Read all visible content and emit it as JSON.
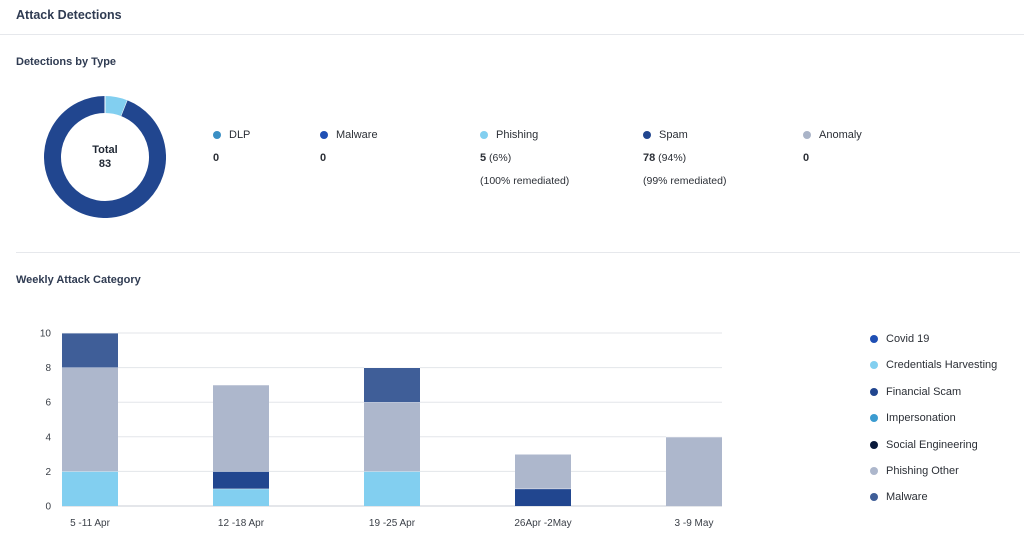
{
  "header": {
    "title": "Attack Detections"
  },
  "detections": {
    "section_title": "Detections by Type",
    "total_label": "Total",
    "total_value": "83",
    "types": [
      {
        "name": "DLP",
        "count": "0",
        "pct": "",
        "remediated": "",
        "color": "#3b8fc4"
      },
      {
        "name": "Malware",
        "count": "0",
        "pct": "",
        "remediated": "",
        "color": "#1f4fb4"
      },
      {
        "name": "Phishing",
        "count": "5",
        "pct": " (6%)",
        "remediated": "(100% remediated)",
        "color": "#82cff0"
      },
      {
        "name": "Spam",
        "count": "78",
        "pct": " (94%)",
        "remediated": "(99% remediated)",
        "color": "#21468f"
      },
      {
        "name": "Anomaly",
        "count": "0",
        "pct": "",
        "remediated": "",
        "color": "#aab4c8"
      }
    ]
  },
  "weekly": {
    "section_title": "Weekly Attack Category",
    "legend": [
      {
        "name": "Covid 19",
        "color": "#1f4fb4"
      },
      {
        "name": "Credentials Harvesting",
        "color": "#82cff0"
      },
      {
        "name": "Financial Scam",
        "color": "#21468f"
      },
      {
        "name": "Impersonation",
        "color": "#3b9bd0"
      },
      {
        "name": "Social Engineering",
        "color": "#0a1a3c"
      },
      {
        "name": "Phishing Other",
        "color": "#adb7cc"
      },
      {
        "name": "Malware",
        "color": "#3f5e98"
      }
    ]
  },
  "chart_data": [
    {
      "type": "pie",
      "title": "Detections by Type",
      "categories": [
        "DLP",
        "Malware",
        "Phishing",
        "Spam",
        "Anomaly"
      ],
      "values": [
        0,
        0,
        5,
        78,
        0
      ],
      "center_text": "Total 83"
    },
    {
      "type": "bar",
      "stacked": true,
      "title": "Weekly Attack Category",
      "categories": [
        "5 -11 Apr",
        "12 -18 Apr",
        "19 -25 Apr",
        "26Apr -2May",
        "3 -9 May"
      ],
      "series": [
        {
          "name": "Covid 19",
          "values": [
            0,
            0,
            0,
            0,
            0
          ],
          "color": "#1f4fb4"
        },
        {
          "name": "Credentials Harvesting",
          "values": [
            2,
            1,
            2,
            0,
            0
          ],
          "color": "#82cff0"
        },
        {
          "name": "Financial Scam",
          "values": [
            0,
            1,
            0,
            1,
            0
          ],
          "color": "#21468f"
        },
        {
          "name": "Impersonation",
          "values": [
            0,
            0,
            0,
            0,
            0
          ],
          "color": "#3b9bd0"
        },
        {
          "name": "Social Engineering",
          "values": [
            0,
            0,
            0,
            0,
            0
          ],
          "color": "#0a1a3c"
        },
        {
          "name": "Phishing Other",
          "values": [
            6,
            5,
            4,
            2,
            4
          ],
          "color": "#adb7cc"
        },
        {
          "name": "Malware",
          "values": [
            2,
            0,
            2,
            0,
            0
          ],
          "color": "#3f5e98"
        }
      ],
      "ylim": [
        0,
        10
      ],
      "yticks": [
        0,
        2,
        4,
        6,
        8,
        10
      ],
      "grid": true,
      "legend": "right"
    }
  ]
}
